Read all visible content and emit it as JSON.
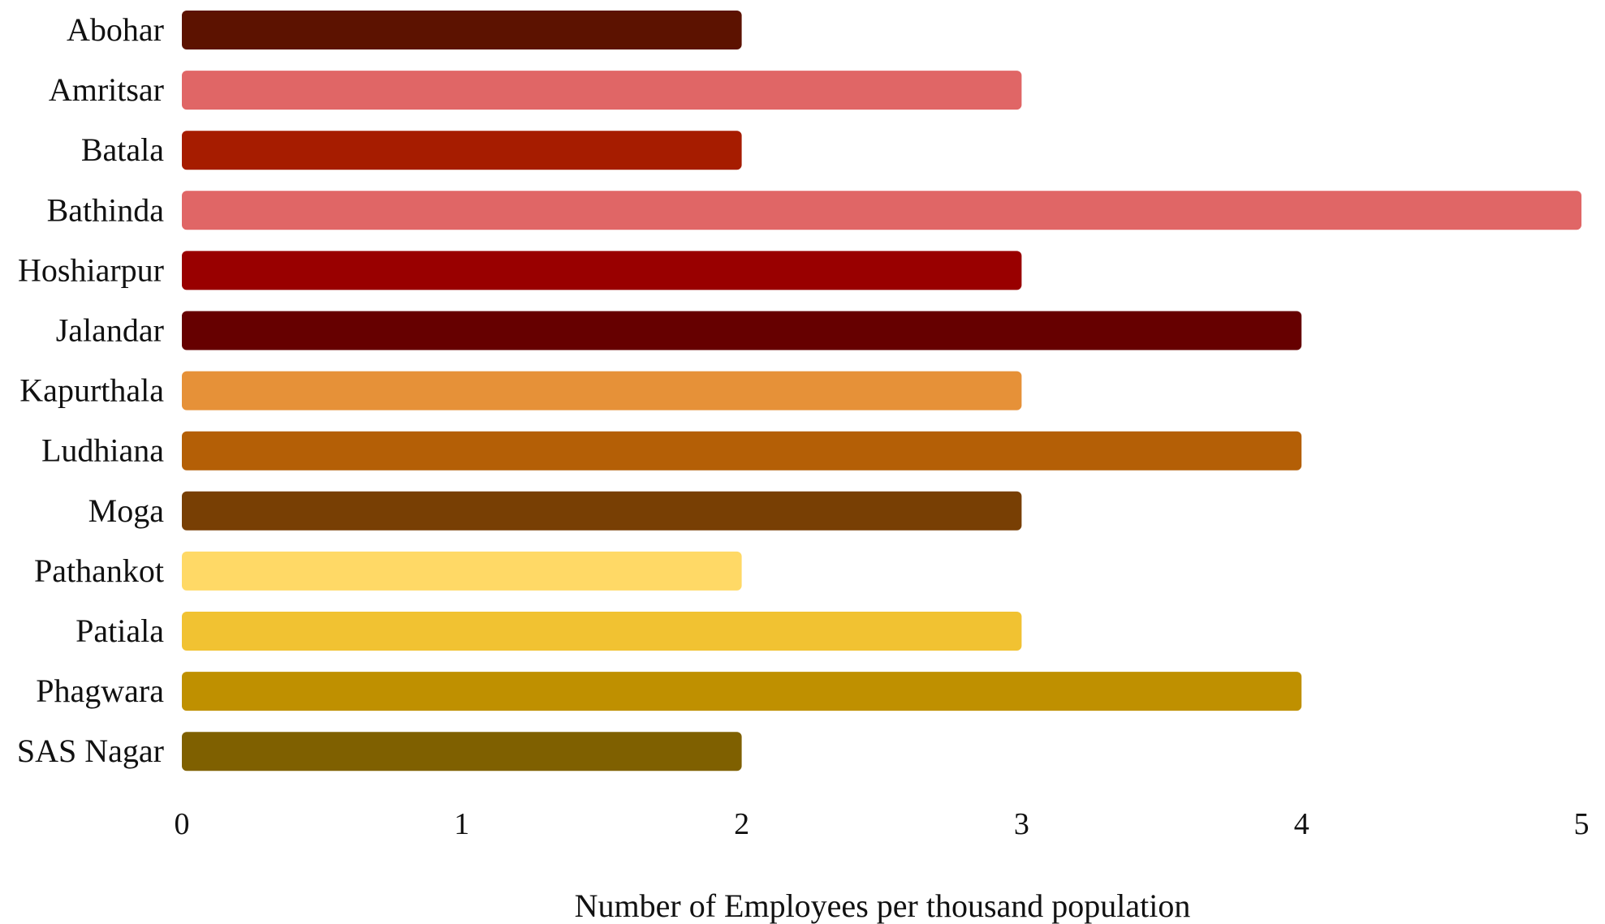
{
  "chart_data": {
    "type": "bar",
    "orientation": "horizontal",
    "categories": [
      "Abohar",
      "Amritsar",
      "Batala",
      "Bathinda",
      "Hoshiarpur",
      "Jalandar",
      "Kapurthala",
      "Ludhiana",
      "Moga",
      "Pathankot",
      "Patiala",
      "Phagwara",
      "SAS Nagar"
    ],
    "values": [
      2,
      3,
      2,
      5,
      3,
      4,
      3,
      4,
      3,
      2,
      3,
      4,
      2
    ],
    "colors": [
      "#5c1200",
      "#e06666",
      "#a61c00",
      "#e06666",
      "#990000",
      "#660000",
      "#e69138",
      "#b45f06",
      "#783f04",
      "#ffd966",
      "#f1c232",
      "#bf9000",
      "#7f6000"
    ],
    "xlim": [
      0,
      5
    ],
    "xticks": [
      "0",
      "1",
      "2",
      "3",
      "4",
      "5"
    ],
    "xlabel": "Number of Employees per thousand population",
    "ylabel": "",
    "title": "",
    "grid": false,
    "legend": "none"
  }
}
